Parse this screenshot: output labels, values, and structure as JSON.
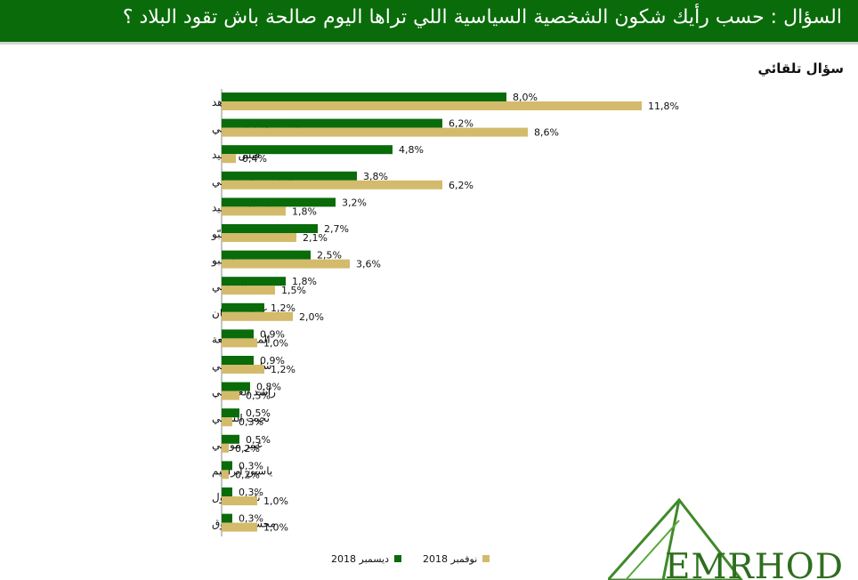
{
  "header": {
    "title": "السؤال :  حسب رأيك شكون الشخصية  السياسية اللي تراها اليوم صالحة باش تقود البلاد ؟"
  },
  "subtitle": "سؤال تلقائي",
  "logo": {
    "text": "EMRHOD"
  },
  "colors": {
    "header_bg": "#0a6b0a",
    "series_dec": "#0a6b0a",
    "series_nov": "#d3bb6b"
  },
  "chart_data": {
    "type": "bar",
    "orientation": "horizontal",
    "categories": [
      "يوسف الشاهد",
      "الباجي قايد السبسي",
      "قيس سعيد",
      "المنصف المرزوقي",
      "الصافي سعيد",
      "سامية عبّو",
      "محمد عبو",
      "حمة الهمامي",
      "كمال مرجان",
      "المهدي جمعة",
      "سليم الرياحي",
      "راشد الغنوشي",
      "نجيب الشابي",
      "عبير موسي",
      "ياسين ابراهيم",
      "ناجي جلول",
      "محسن مرزوق"
    ],
    "series": [
      {
        "name": "ديسمبر 2018",
        "values": [
          8.0,
          6.2,
          4.8,
          3.8,
          3.2,
          2.7,
          2.5,
          1.8,
          1.2,
          0.9,
          0.9,
          0.8,
          0.5,
          0.5,
          0.3,
          0.3,
          0.3
        ],
        "labels": [
          "8,0%",
          "6,2%",
          "4,8%",
          "3,8%",
          "3,2%",
          "2,7%",
          "2,5%",
          "1,8%",
          "1,2%",
          "0,9%",
          "0,9%",
          "0,8%",
          "0,5%",
          "0,5%",
          "0,3%",
          "0,3%",
          "0,3%"
        ]
      },
      {
        "name": "نوفمبر 2018",
        "values": [
          11.8,
          8.6,
          0.4,
          6.2,
          1.8,
          2.1,
          3.6,
          1.5,
          2.0,
          1.0,
          1.2,
          0.5,
          0.3,
          0.2,
          0.2,
          1.0,
          1.0
        ],
        "labels": [
          "11,8%",
          "8,6%",
          "0,4%",
          "6,2%",
          "1,8%",
          "2,1%",
          "3,6%",
          "1,5%",
          "2,0%",
          "1,0%",
          "1,2%",
          "0,5%",
          "0,3%",
          "0,2%",
          "0,2%",
          "1,0%",
          "1,0%"
        ]
      }
    ],
    "legend_position": "bottom",
    "grid": false
  }
}
